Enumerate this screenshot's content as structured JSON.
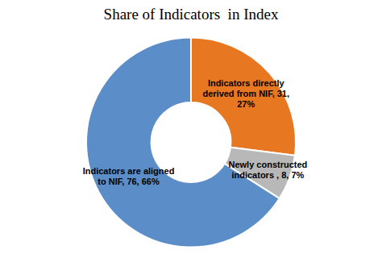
{
  "chart_data": {
    "type": "donut",
    "title": "Share of Indicators  in Index",
    "categories": [
      "Indicators directly\nderived from NIF, 31,\n27%",
      "Newly constructed\nindicators , 8, 7%",
      "Indicators are aligned\nto NIF, 76, 66%"
    ],
    "values": [
      27,
      7,
      66
    ],
    "colors": [
      "#E87722",
      "#B8B8B8",
      "#5B8DC8"
    ]
  }
}
